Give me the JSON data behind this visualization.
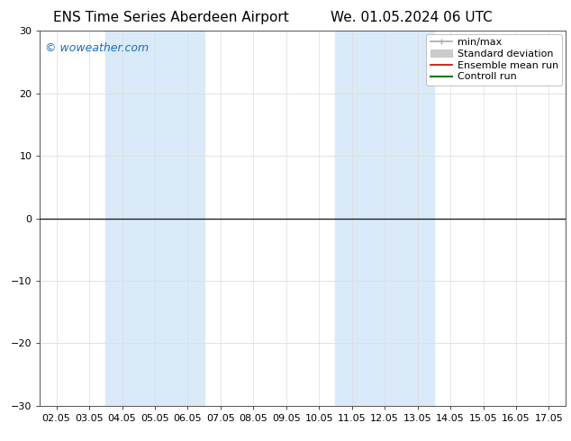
{
  "title_left": "ENS Time Series Aberdeen Airport",
  "title_right": "We. 01.05.2024 06 UTC",
  "xlabel_ticks": [
    "02.05",
    "03.05",
    "04.05",
    "05.05",
    "06.05",
    "07.05",
    "08.05",
    "09.05",
    "10.05",
    "11.05",
    "12.05",
    "13.05",
    "14.05",
    "15.05",
    "16.05",
    "17.05"
  ],
  "ylim": [
    -30,
    30
  ],
  "yticks": [
    -30,
    -20,
    -10,
    0,
    10,
    20,
    30
  ],
  "shaded_regions": [
    {
      "xstart": 2,
      "xend": 4,
      "color": "#daeaf8"
    },
    {
      "xstart": 9,
      "xend": 11,
      "color": "#daeaf8"
    }
  ],
  "hline_y": 0,
  "hline_color": "#222222",
  "watermark": "© woweather.com",
  "watermark_color": "#1a6cba",
  "legend_items": [
    {
      "label": "min/max",
      "color": "#aaaaaa",
      "lw": 1.2,
      "style": "minmax"
    },
    {
      "label": "Standard deviation",
      "color": "#cccccc",
      "lw": 6,
      "style": "box"
    },
    {
      "label": "Ensemble mean run",
      "color": "#cc0000",
      "lw": 1.2,
      "style": "line"
    },
    {
      "label": "Controll run",
      "color": "#007700",
      "lw": 1.5,
      "style": "line"
    }
  ],
  "background_color": "#ffffff",
  "plot_bg_color": "#ffffff",
  "grid_color": "#dddddd",
  "tick_fontsize": 8,
  "title_fontsize": 11,
  "legend_fontsize": 8
}
